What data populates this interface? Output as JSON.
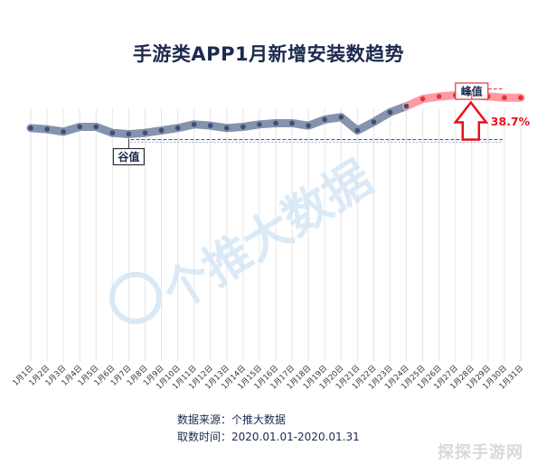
{
  "title": "手游类APP1月新增安装数趋势",
  "source": {
    "line1": "数据来源：个推大数据",
    "line2": "取数时间：2020.01.01-2020.01.31"
  },
  "watermark": {
    "text": "个推大数据",
    "site": "探探手游网"
  },
  "colors": {
    "normal_line": "#8593ad",
    "highlight_line": "#ff9aa2",
    "normal_dot": "#3d4f7a",
    "highlight_dot": "#e0343a",
    "arrow": "#e8101d",
    "ref_line": "#4a5e92",
    "grid": "#e6e6e6"
  },
  "chart_data": {
    "type": "line",
    "categories": [
      "1月1日",
      "1月2日",
      "1月3日",
      "1月4日",
      "1月5日",
      "1月6日",
      "1月7日",
      "1月8日",
      "1月9日",
      "1月10日",
      "1月11日",
      "1月12日",
      "1月13日",
      "1月14日",
      "1月15日",
      "1月16日",
      "1月17日",
      "1月18日",
      "1月19日",
      "1月20日",
      "1月21日",
      "1月22日",
      "1月23日",
      "1月24日",
      "1月25日",
      "1月26日",
      "1月27日",
      "1月28日",
      "1月29日",
      "1月30日",
      "1月31日"
    ],
    "values": [
      42,
      41,
      39,
      43,
      43,
      38,
      37,
      38,
      40,
      42,
      45,
      44,
      42,
      43,
      45,
      46,
      46,
      44,
      49,
      51,
      40,
      47,
      55,
      60,
      66,
      68,
      69,
      69,
      68,
      67,
      67
    ],
    "highlight_start_index": 23,
    "ylim": [
      -150,
      88
    ],
    "grid": "vertical",
    "peak": {
      "label": "峰值",
      "index": 27
    },
    "valley": {
      "label": "谷值",
      "index": 6
    },
    "change_label": "38.7%"
  }
}
